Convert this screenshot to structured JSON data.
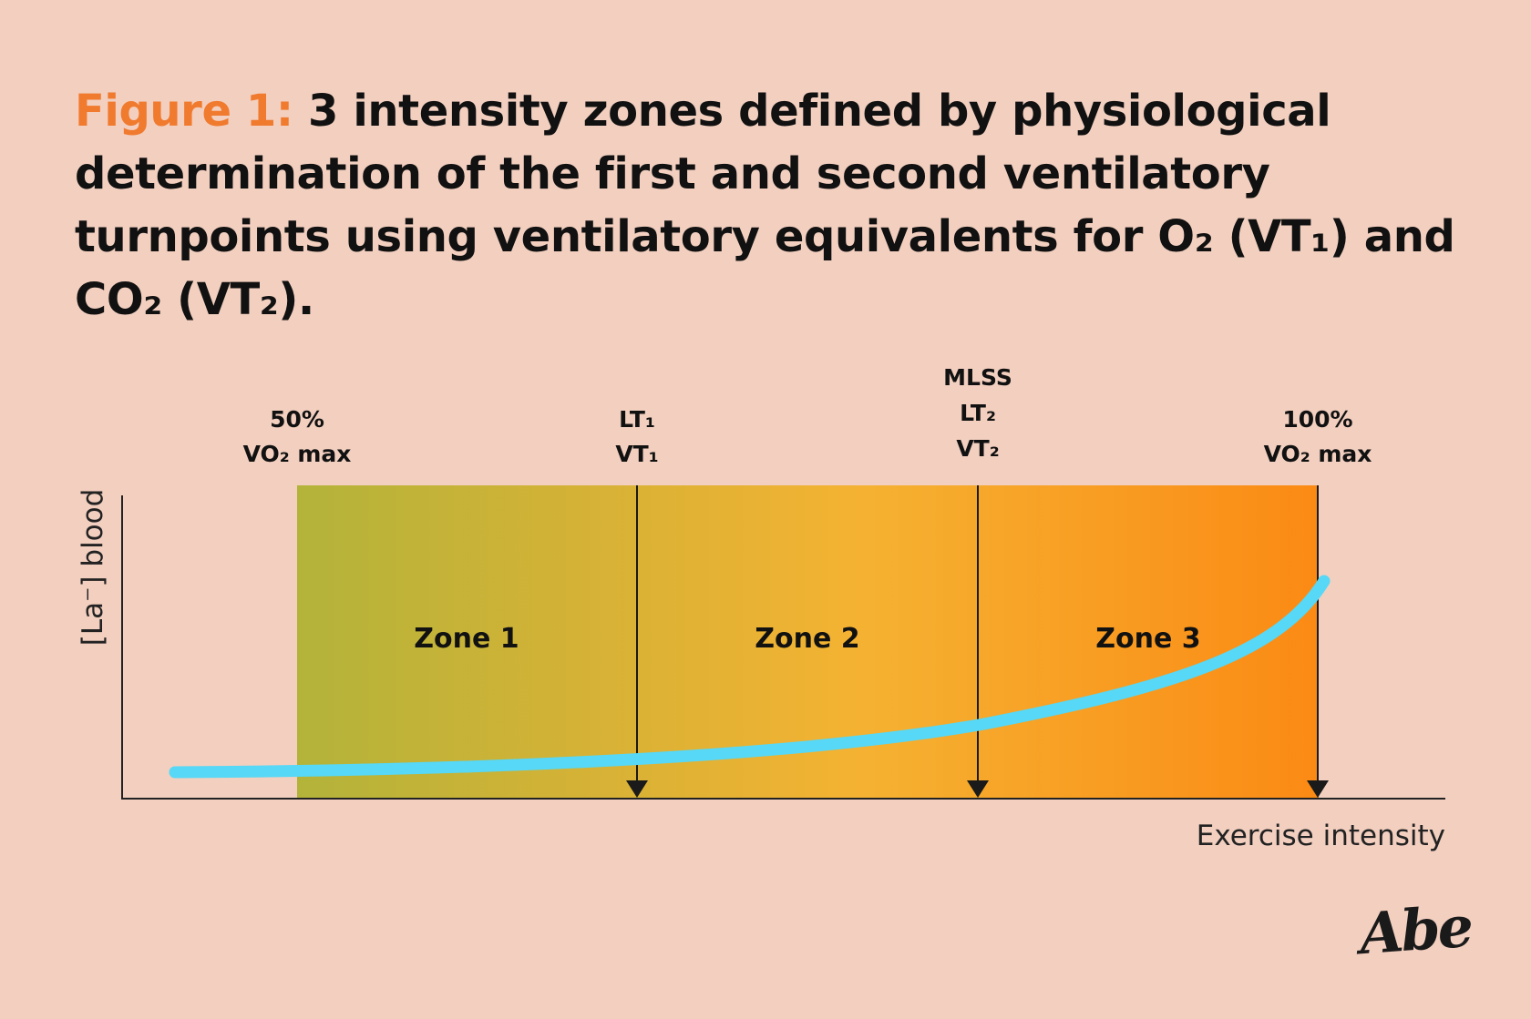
{
  "title": {
    "label": "Figure 1:",
    "text": "3 intensity zones defined by physiological determination of the first and second ventilatory turnpoints using ventilatory equivalents for O₂ (VT₁) and CO₂ (VT₂)."
  },
  "diagram": {
    "y_axis_label": "[La⁻] blood",
    "x_axis_label": "Exercise intensity",
    "markers": [
      {
        "lines": [
          "50%",
          "VO₂ max"
        ]
      },
      {
        "lines": [
          "LT₁",
          "VT₁"
        ]
      },
      {
        "lines": [
          "MLSS",
          "LT₂",
          "VT₂"
        ]
      },
      {
        "lines": [
          "100%",
          "VO₂ max"
        ]
      }
    ],
    "zones": [
      "Zone 1",
      "Zone 2",
      "Zone 3"
    ],
    "colors": {
      "background": "#f2cfbf",
      "gradient_start": "#b3b33a",
      "gradient_mid": "#f5b232",
      "gradient_end": "#fb8a14",
      "curve": "#56d8f6",
      "title_accent": "#f07a2e"
    }
  },
  "signature": "Abe"
}
